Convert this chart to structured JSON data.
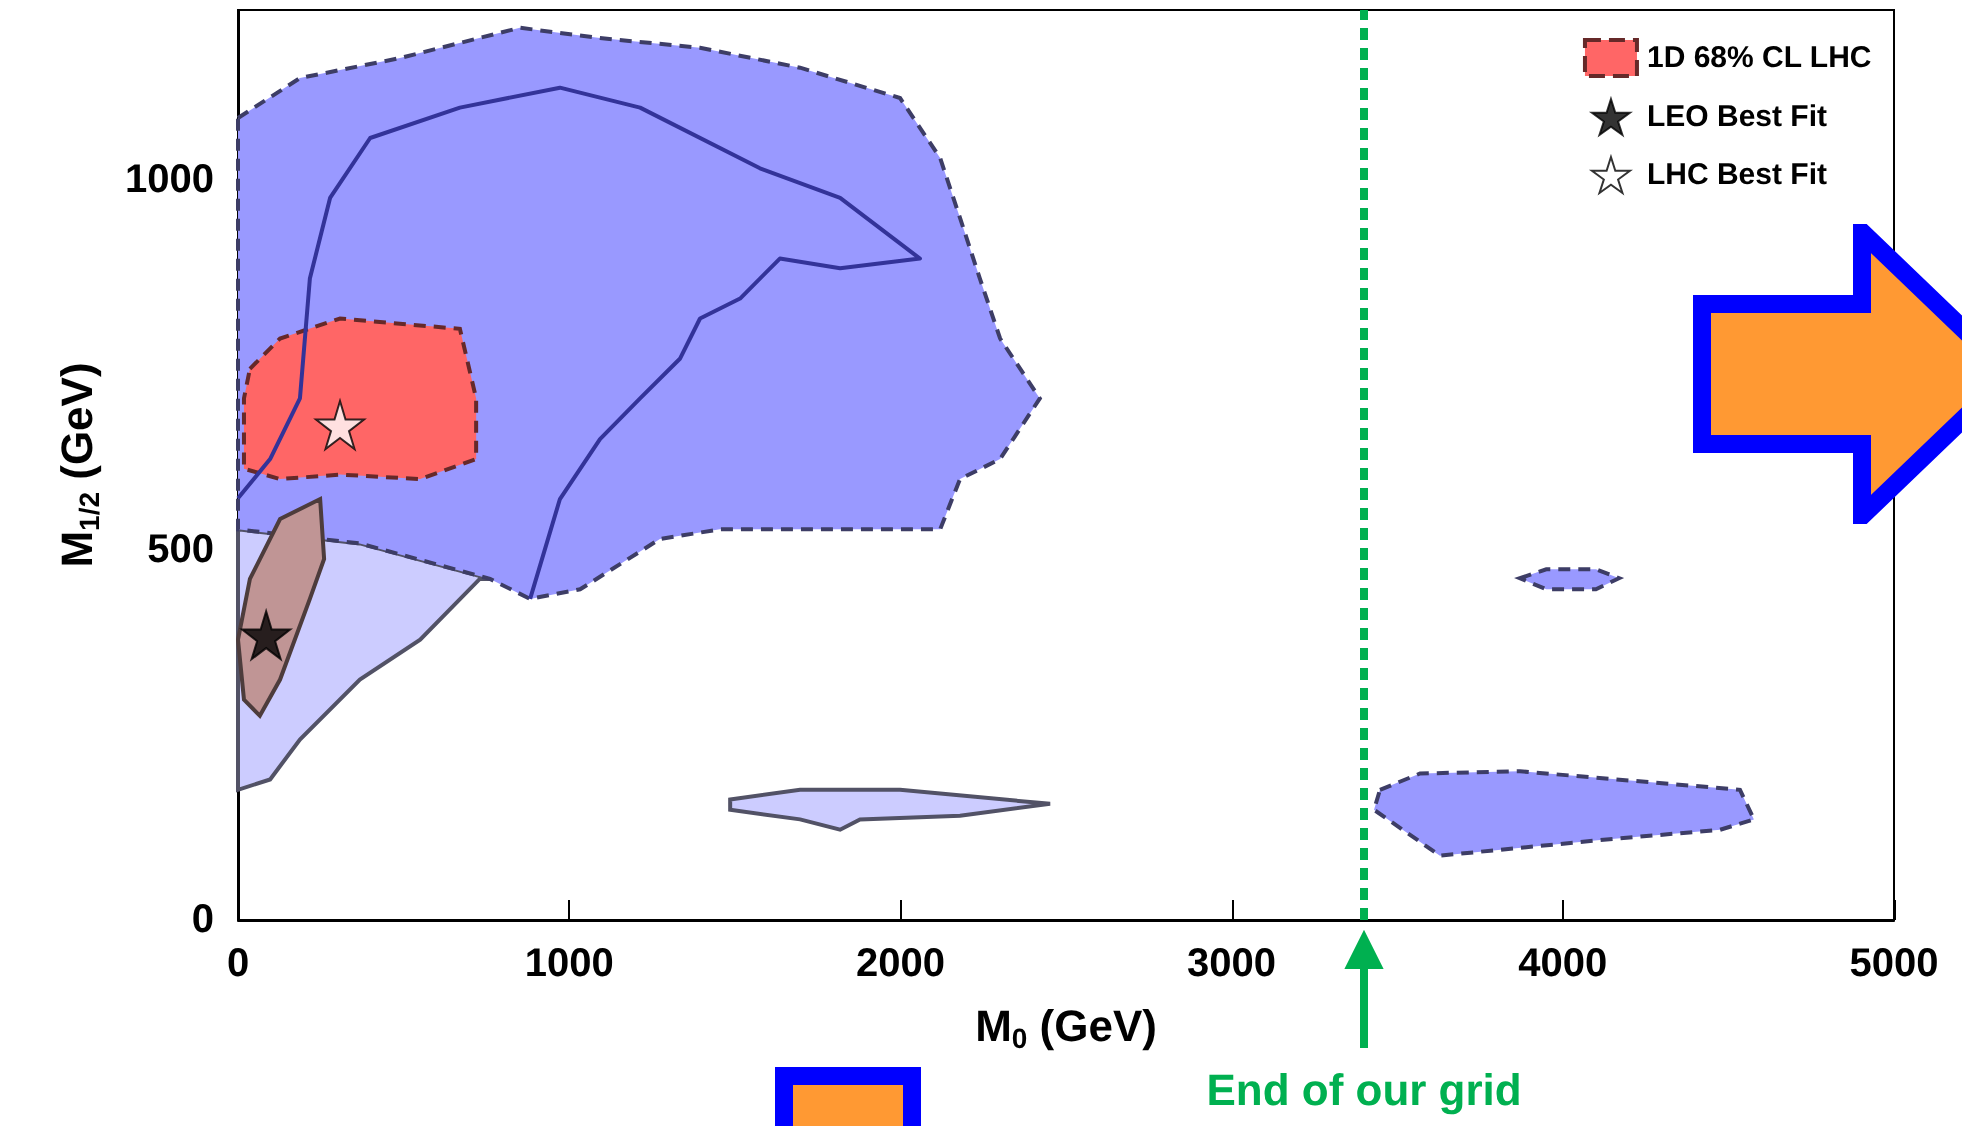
{
  "chart_data": {
    "type": "area",
    "xlabel": "M$_{0}$ (GeV)",
    "ylabel": "M$_{1/2}$ (GeV)",
    "xlim": [
      0,
      5000
    ],
    "xticks": [
      0,
      1000,
      2000,
      3000,
      4000,
      5000
    ],
    "ylim": [
      0,
      1230
    ],
    "yticks": [
      0,
      500,
      1000
    ],
    "grid": false,
    "legend": "top right",
    "series": [
      {
        "color": "#ccccff",
        "line_style": "solid",
        "x": [
          0,
          368,
          761,
          730,
          550,
          368,
          187,
          97,
          0
        ],
        "values": [
          528,
          509,
          461,
          461,
          379,
          325,
          244,
          190,
          176
        ]
      },
      {
        "color": "#9999ff",
        "line_style": "dashed",
        "x": [
          0,
          187,
          489,
          851,
          1093,
          1395,
          1697,
          1999,
          2120,
          2180,
          2240,
          2301,
          2421,
          2301,
          2180,
          2120,
          1697,
          1455,
          1274,
          1033,
          882,
          761,
          368,
          0
        ],
        "values": [
          1084,
          1138,
          1165,
          1206,
          1192,
          1179,
          1152,
          1111,
          1030,
          949,
          867,
          786,
          705,
          623,
          596,
          528,
          528,
          528,
          515,
          447,
          434,
          461,
          509,
          528
        ]
      },
      {
        "type": "line",
        "color": "#333399",
        "line_style": "solid",
        "x": [
          0,
          97,
          187,
          217,
          278,
          399,
          670,
          972,
          1214,
          1576,
          1818,
          2059,
          1818,
          1636,
          1516,
          1395,
          1335,
          1214,
          1093,
          972,
          882
        ],
        "values": [
          570,
          623,
          705,
          867,
          976,
          1057,
          1098,
          1125,
          1098,
          1016,
          976,
          894,
          881,
          894,
          840,
          813,
          759,
          705,
          650,
          569,
          434
        ]
      },
      {
        "name": "1D 68% CL LHC",
        "color": "#ff6666",
        "line_style": "dashed",
        "x": [
          36,
          127,
          308,
          670,
          719,
          719,
          550,
          308,
          127,
          18,
          18
        ],
        "values": [
          745,
          786,
          813,
          799,
          705,
          623,
          596,
          602,
          596,
          610,
          705
        ]
      },
      {
        "color": "#c09595",
        "line_style": "solid",
        "x": [
          36,
          127,
          248,
          260,
          217,
          127,
          66,
          18,
          0
        ],
        "values": [
          461,
          542,
          569,
          488,
          434,
          325,
          276,
          298,
          379
        ]
      },
      {
        "color": "#ccccff",
        "line_style": "solid",
        "x": [
          1486,
          1697,
          1999,
          2452,
          2180,
          1878,
          1818,
          1697,
          1486
        ],
        "values": [
          163,
          176,
          176,
          157,
          141,
          136,
          122,
          136,
          149
        ]
      },
      {
        "color": "#9999ff",
        "line_style": "dashed",
        "x": [
          3448,
          3569,
          3871,
          4535,
          4577,
          4475,
          4112,
          3629,
          3430
        ],
        "values": [
          176,
          198,
          201,
          176,
          136,
          122,
          108,
          87,
          149
        ]
      },
      {
        "color": "#9999ff",
        "line_style": "dashed",
        "x": [
          3870,
          3950,
          4100,
          4170,
          4100,
          3950
        ],
        "values": [
          462,
          474,
          474,
          462,
          447,
          447
        ]
      },
      {
        "type": "scatter",
        "name": "LEO Best Fit",
        "color": "#000000",
        "marker": "star",
        "x": [
          85
        ],
        "values": [
          385
        ]
      },
      {
        "type": "scatter",
        "name": "LHC Best Fit",
        "color": "#ffffff",
        "marker": "star",
        "x": [
          308
        ],
        "values": [
          669
        ]
      }
    ],
    "ref_lines": [
      {
        "axis": "x",
        "value": 3400,
        "color": "#00b050",
        "line_style": "dashed",
        "label": "End of our grid"
      }
    ]
  }
}
